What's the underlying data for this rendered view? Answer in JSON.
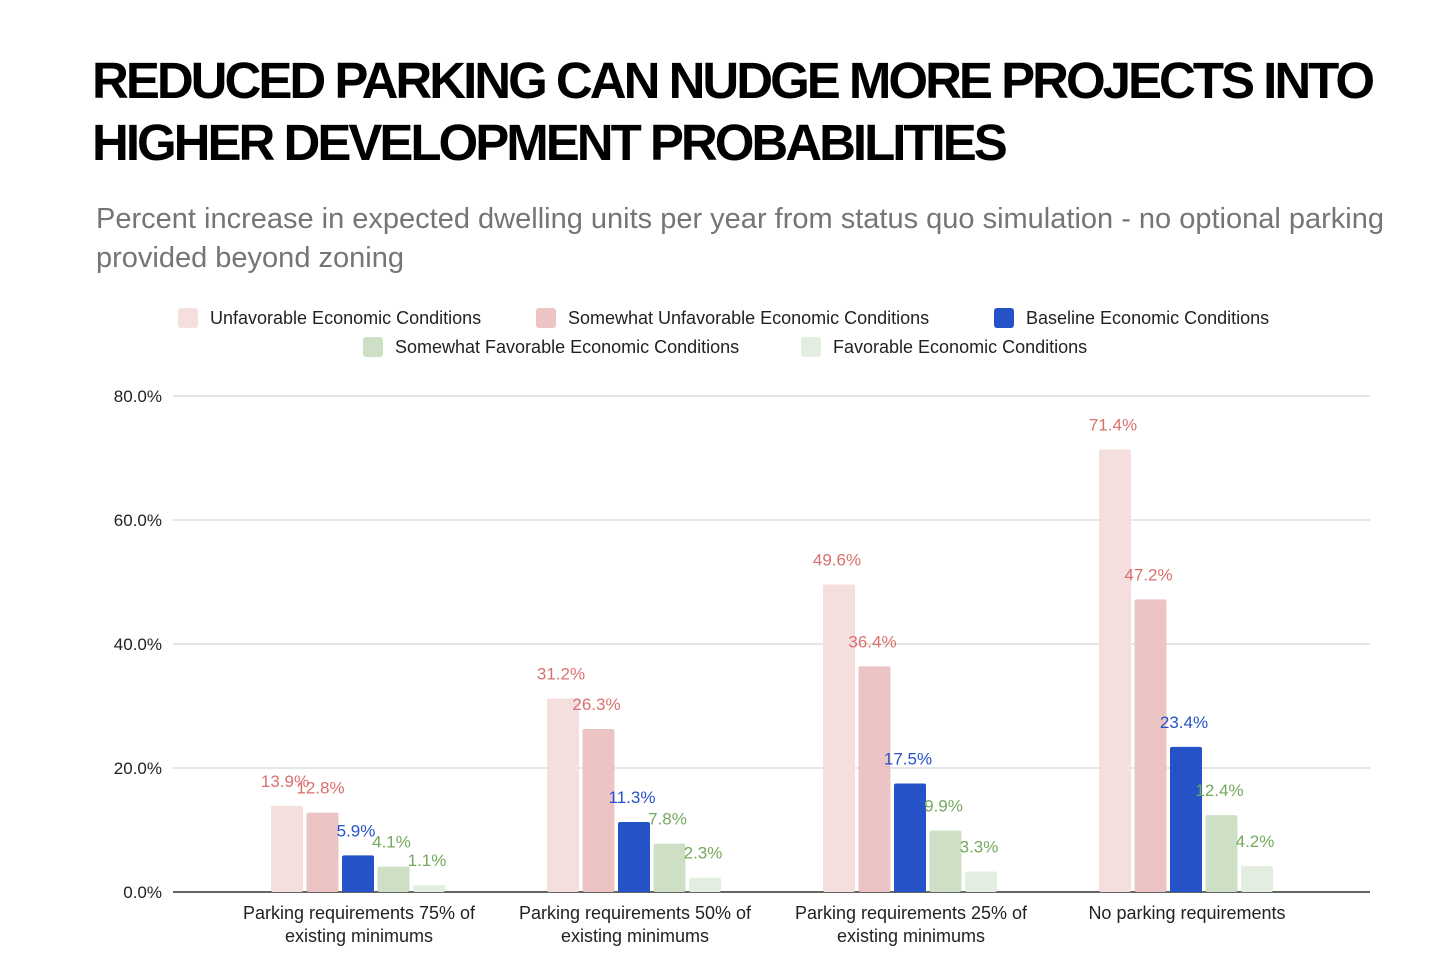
{
  "title": "REDUCED PARKING CAN NUDGE MORE PROJECTS INTO HIGHER DEVELOPMENT PROBABILITIES",
  "subtitle": "Percent increase in expected dwelling units per year from status quo simulation - no optional parking provided beyond zoning",
  "chart_data": {
    "type": "bar",
    "categories": [
      [
        "Parking requirements 75% of",
        "existing minimums"
      ],
      [
        "Parking requirements 50% of",
        "existing minimums"
      ],
      [
        "Parking requirements 25% of",
        "existing minimums"
      ],
      [
        "No parking requirements"
      ]
    ],
    "series": [
      {
        "name": "Unfavorable Economic Conditions",
        "color": "#f4dede",
        "label_color": "#d9706e",
        "values": [
          13.9,
          31.2,
          49.6,
          71.4
        ],
        "labels": [
          "13.9%",
          "31.2%",
          "49.6%",
          "71.4%"
        ]
      },
      {
        "name": "Somewhat Unfavorable Economic Conditions",
        "color": "#ecc4c3",
        "label_color": "#d9706e",
        "values": [
          12.8,
          26.3,
          36.4,
          47.2
        ],
        "labels": [
          "12.8%",
          "26.3%",
          "36.4%",
          "47.2%"
        ]
      },
      {
        "name": "Baseline Economic Conditions",
        "color": "#2552c6",
        "label_color": "#2552c6",
        "values": [
          5.9,
          11.3,
          17.5,
          23.4
        ],
        "labels": [
          "5.9%",
          "11.3%",
          "17.5%",
          "23.4%"
        ]
      },
      {
        "name": "Somewhat Favorable Economic Conditions",
        "color": "#cde0c6",
        "label_color": "#73a95e",
        "values": [
          4.1,
          7.8,
          9.9,
          12.4
        ],
        "labels": [
          "4.1%",
          "7.8%",
          "9.9%",
          "12.4%"
        ]
      },
      {
        "name": "Favorable Economic Conditions",
        "color": "#e4eee0",
        "label_color": "#73a95e",
        "values": [
          1.1,
          2.3,
          3.3,
          4.2
        ],
        "labels": [
          "1.1%",
          "2.3%",
          "3.3%",
          "4.2%"
        ]
      }
    ],
    "ylim": [
      0,
      80
    ],
    "yticks": [
      0,
      20,
      40,
      60,
      80
    ],
    "ytick_labels": [
      "0.0%",
      "20.0%",
      "40.0%",
      "60.0%",
      "80.0%"
    ],
    "grid": true,
    "legend_position": "top"
  }
}
